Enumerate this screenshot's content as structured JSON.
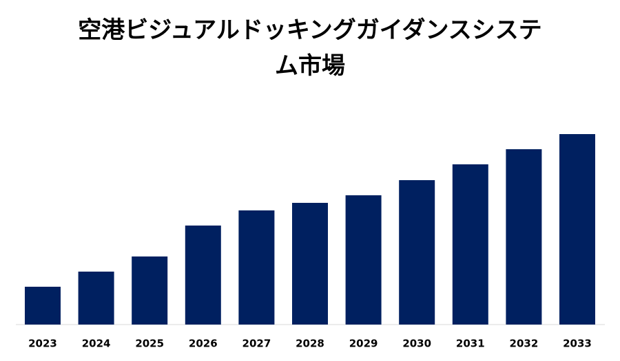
{
  "chart_data": {
    "type": "bar",
    "title": "空港ビジュアルドッキングガイダンスシステム市場",
    "categories": [
      "2023",
      "2024",
      "2025",
      "2026",
      "2027",
      "2028",
      "2029",
      "2030",
      "2031",
      "2032",
      "2033"
    ],
    "values": [
      55,
      77,
      99,
      144,
      166,
      177,
      188,
      210,
      233,
      255,
      277
    ],
    "color": "#002060"
  }
}
